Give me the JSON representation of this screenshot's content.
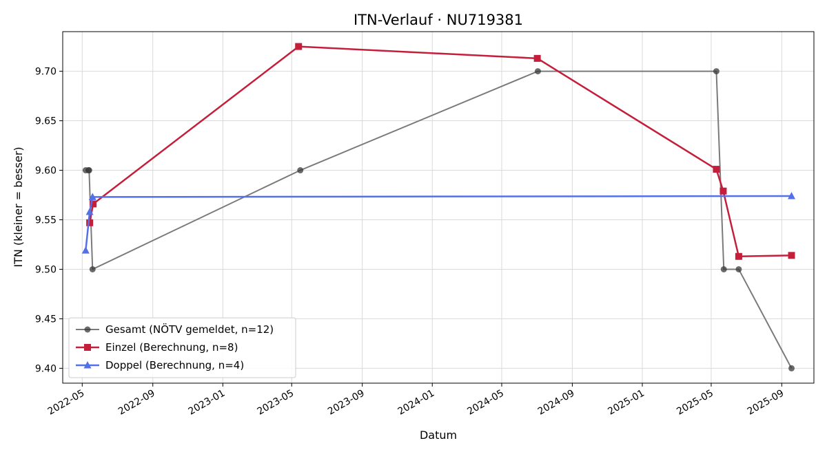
{
  "chart_data": {
    "type": "line",
    "title": "ITN-Verlauf · NU719381",
    "xlabel": "Datum",
    "ylabel": "ITN  (kleiner = besser)",
    "ylim": [
      9.385,
      9.74
    ],
    "xlim": [
      "2022-03-28",
      "2025-10-27"
    ],
    "grid": true,
    "legend_position": "lower-left",
    "x_ticks": [
      "2022-05",
      "2022-09",
      "2023-01",
      "2023-05",
      "2023-09",
      "2024-01",
      "2024-05",
      "2024-09",
      "2025-01",
      "2025-05",
      "2025-09"
    ],
    "y_ticks": [
      9.4,
      9.45,
      9.5,
      9.55,
      9.6,
      9.65,
      9.7
    ],
    "y_tick_labels": [
      "9.40",
      "9.45",
      "9.50",
      "9.55",
      "9.60",
      "9.65",
      "9.70"
    ],
    "series": [
      {
        "name": "Gesamt (NÖTV gemeldet, n=12)",
        "color": "#7a7a7a",
        "marker": "circle",
        "points": [
          {
            "x": "2022-05-07",
            "y": 9.6
          },
          {
            "x": "2022-05-12",
            "y": 9.6
          },
          {
            "x": "2022-05-13",
            "y": 9.6
          },
          {
            "x": "2022-05-19",
            "y": 9.5
          },
          {
            "x": "2023-05-16",
            "y": 9.6
          },
          {
            "x": "2024-07-03",
            "y": 9.7
          },
          {
            "x": "2025-05-10",
            "y": 9.7
          },
          {
            "x": "2025-05-23",
            "y": 9.5
          },
          {
            "x": "2025-06-18",
            "y": 9.5
          },
          {
            "x": "2025-09-18",
            "y": 9.4
          }
        ]
      },
      {
        "name": "Einzel (Berechnung, n=8)",
        "color": "#c41e3a",
        "marker": "square",
        "points": [
          {
            "x": "2022-05-14",
            "y": 9.547
          },
          {
            "x": "2022-05-20",
            "y": 9.566
          },
          {
            "x": "2023-05-13",
            "y": 9.725
          },
          {
            "x": "2024-07-02",
            "y": 9.713
          },
          {
            "x": "2025-05-10",
            "y": 9.601
          },
          {
            "x": "2025-05-22",
            "y": 9.579
          },
          {
            "x": "2025-06-18",
            "y": 9.513
          },
          {
            "x": "2025-09-18",
            "y": 9.514
          }
        ]
      },
      {
        "name": "Doppel (Berechnung, n=4)",
        "color": "#5470e8",
        "marker": "triangle",
        "points": [
          {
            "x": "2022-05-07",
            "y": 9.519
          },
          {
            "x": "2022-05-14",
            "y": 9.558
          },
          {
            "x": "2022-05-19",
            "y": 9.573
          },
          {
            "x": "2025-09-18",
            "y": 9.574
          }
        ]
      }
    ]
  }
}
